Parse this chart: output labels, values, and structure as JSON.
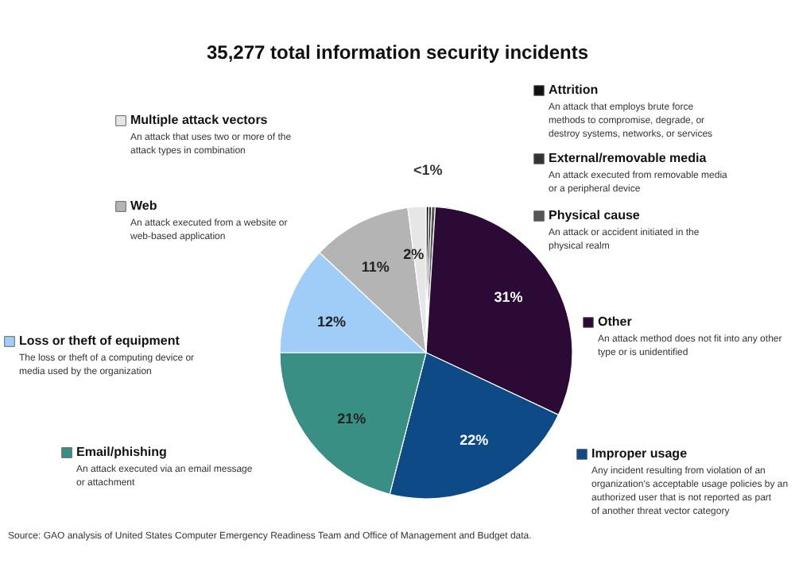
{
  "chart_data": {
    "type": "pie",
    "title": "35,277 total information security incidents",
    "categories": [
      "Attrition",
      "External/removable media",
      "Physical cause",
      "Other",
      "Improper usage",
      "Email/phishing",
      "Loss or theft of equipment",
      "Web",
      "Multiple attack vectors"
    ],
    "values": [
      0.3,
      0.3,
      0.4,
      31,
      22,
      21,
      12,
      11,
      2
    ],
    "value_labels": [
      "<1%",
      null,
      null,
      "31%",
      "22%",
      "21%",
      "12%",
      "11%",
      "2%"
    ],
    "legend": "top left",
    "colors": [
      "#111111",
      "#333333",
      "#555555",
      "#2b0a36",
      "#0d4a86",
      "#3a8f85",
      "#9fcdf7",
      "#b4b4b4",
      "#e6e6e6"
    ],
    "annotations": [
      "An attack that employs brute force methods to compromise, degrade, or destroy systems, networks, or services",
      "An attack executed from removable media or a peripheral device",
      "An attack or accident initiated in the physical realm",
      "An attack method does not fit into any other type or is unidentified",
      "Any incident resulting from violation of an organization's acceptable usage policies by an authorized user that is not reported as part of another threat vector category",
      "An attack executed via an email message or attachment",
      "The loss or theft of a computing device or media used by the organization",
      "An attack executed from a website or web-based application",
      "An attack that uses two or more of the attack types in combination",
      "Source: GAO analysis of United States Computer Emergency Readiness Team and Office of Management and Budget data."
    ]
  }
}
